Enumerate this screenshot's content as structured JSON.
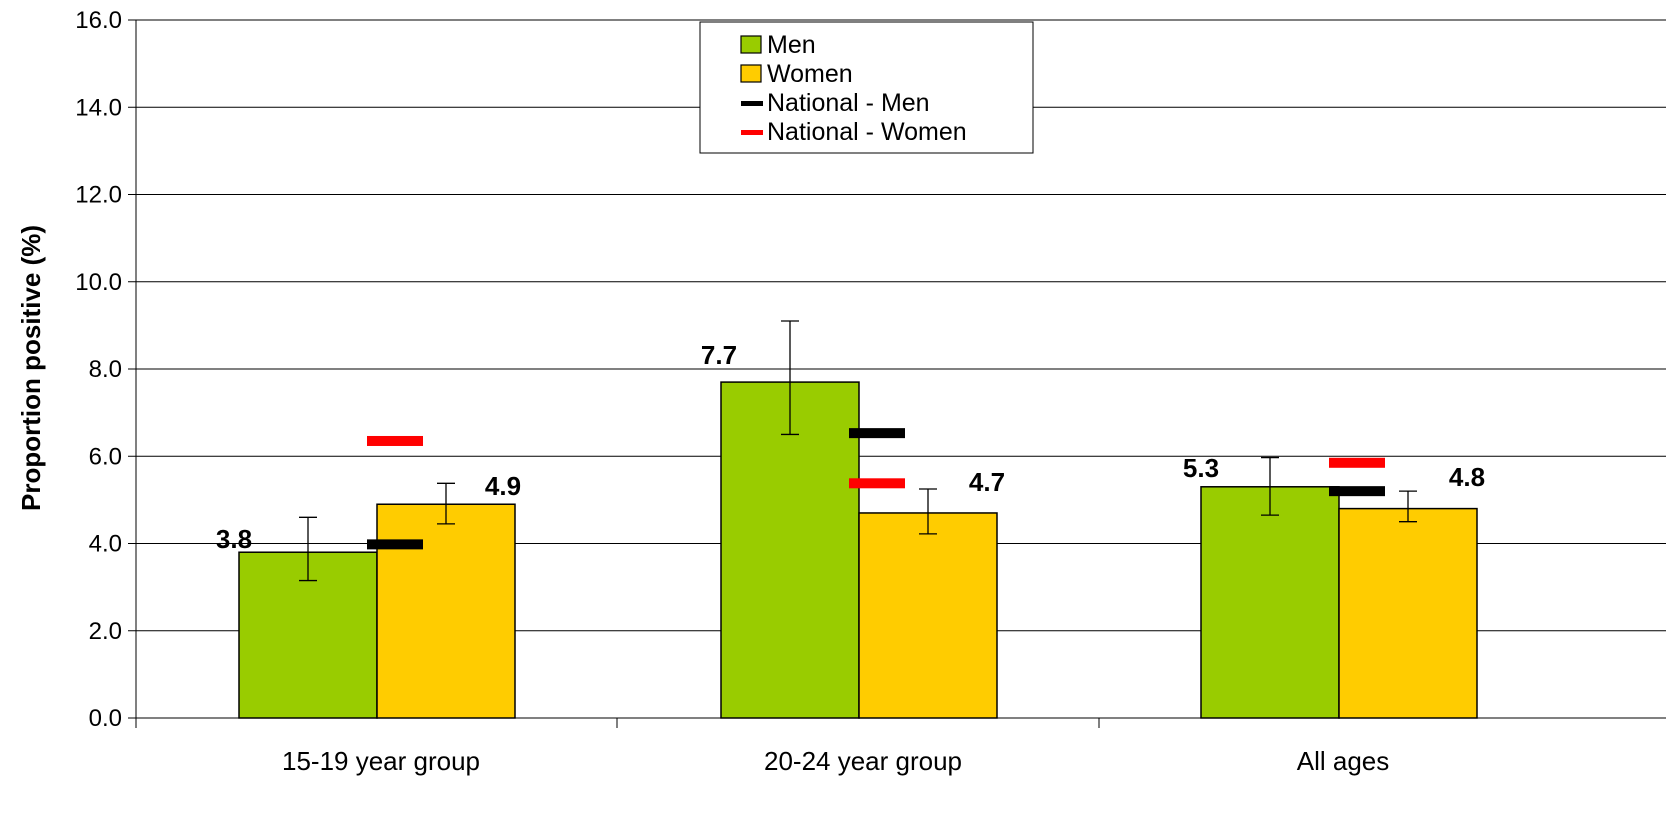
{
  "chart_data": {
    "type": "bar",
    "ylabel": "Proportion positive (%)",
    "ylim": [
      0,
      16
    ],
    "ytick_step": 2,
    "ytick_labels": [
      "0.0",
      "2.0",
      "4.0",
      "6.0",
      "8.0",
      "10.0",
      "12.0",
      "14.0",
      "16.0"
    ],
    "grid": true,
    "legend_position": "top-center",
    "categories": [
      "15-19 year group",
      "20-24 year group",
      "All ages"
    ],
    "series": [
      {
        "name": "Men",
        "color": "#99cc00",
        "values": [
          3.8,
          7.7,
          5.3
        ],
        "labels": [
          "3.8",
          "7.7",
          "5.3"
        ],
        "error_low": [
          3.15,
          6.5,
          4.65
        ],
        "error_high": [
          4.6,
          9.1,
          5.97
        ]
      },
      {
        "name": "Women",
        "color": "#ffcc00",
        "values": [
          4.9,
          4.7,
          4.8
        ],
        "labels": [
          "4.9",
          "4.7",
          "4.8"
        ],
        "error_low": [
          4.45,
          4.22,
          4.5
        ],
        "error_high": [
          5.38,
          5.25,
          5.2
        ]
      }
    ],
    "reference_series": [
      {
        "name": "National - Men",
        "color": "#000000",
        "values": [
          3.98,
          6.53,
          5.2
        ]
      },
      {
        "name": "National - Women",
        "color": "#ff0000",
        "values": [
          6.35,
          5.38,
          5.85
        ]
      }
    ]
  }
}
